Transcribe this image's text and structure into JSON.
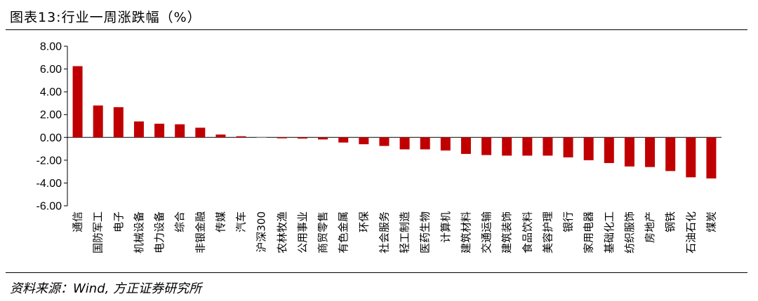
{
  "header": {
    "title": "图表13:行业一周涨跌幅（%）"
  },
  "footer": {
    "source": "资料来源：Wind, 方正证券研究所"
  },
  "colors": {
    "bar": "#C00000",
    "benchmark_bar": "#BFBFBF",
    "axis": "#000000"
  },
  "chart_data": {
    "type": "bar",
    "categories": [
      "通信",
      "国防军工",
      "电子",
      "机械设备",
      "电力设备",
      "综合",
      "非银金融",
      "传媒",
      "汽车",
      "沪深300",
      "农林牧渔",
      "公用事业",
      "商贸零售",
      "有色金属",
      "环保",
      "社会服务",
      "轻工制造",
      "医药生物",
      "计算机",
      "建筑材料",
      "交通运输",
      "建筑装饰",
      "食品饮料",
      "美容护理",
      "银行",
      "家用电器",
      "基础化工",
      "纺织服饰",
      "房地产",
      "钢铁",
      "石油石化",
      "煤炭"
    ],
    "values": [
      6.25,
      2.8,
      2.65,
      1.4,
      1.2,
      1.15,
      0.85,
      0.25,
      0.1,
      -0.05,
      -0.08,
      -0.1,
      -0.18,
      -0.45,
      -0.6,
      -0.75,
      -1.05,
      -1.05,
      -1.15,
      -1.45,
      -1.55,
      -1.6,
      -1.6,
      -1.6,
      -1.75,
      -2.0,
      -2.25,
      -2.55,
      -2.6,
      -2.95,
      -3.5,
      -3.6
    ],
    "highlight_category": "沪深300",
    "yticks": [
      "8.00",
      "6.00",
      "4.00",
      "2.00",
      "0.00",
      "-2.00",
      "-4.00",
      "-6.00"
    ],
    "ylim": [
      -6,
      8
    ],
    "xlabel": "",
    "ylabel": "",
    "grid": false,
    "legend": "none"
  }
}
